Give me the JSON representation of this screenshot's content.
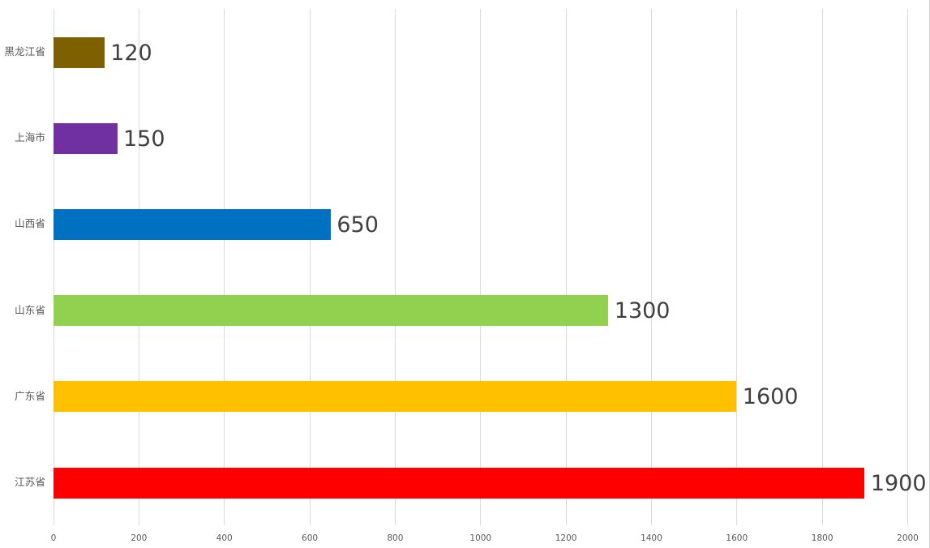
{
  "chart_data": {
    "type": "bar",
    "orientation": "horizontal",
    "title": "",
    "xlabel": "",
    "ylabel": "",
    "categories": [
      "黑龙江省",
      "上海市",
      "山西省",
      "山东省",
      "广东省",
      "江苏省"
    ],
    "values": [
      120,
      150,
      650,
      1300,
      1600,
      1900
    ],
    "bar_colors": [
      "#7F6000",
      "#7030A0",
      "#0070C0",
      "#92D050",
      "#FFC000",
      "#FF0000"
    ],
    "x_ticks": [
      0,
      200,
      400,
      600,
      800,
      1000,
      1200,
      1400,
      1600,
      1800,
      2000
    ],
    "xlim": [
      0,
      2000
    ],
    "grid": "vertical-gridlines-on",
    "legend": "none",
    "data_labels": "shown-right-of-bars"
  },
  "colors": {
    "background": "#FFFFFF",
    "gridline": "#D9D9D9",
    "chart_right_border": "#CFCFCF",
    "value_label": "#404040",
    "axis_tick_label": "#595959",
    "category_label": "#595959"
  }
}
